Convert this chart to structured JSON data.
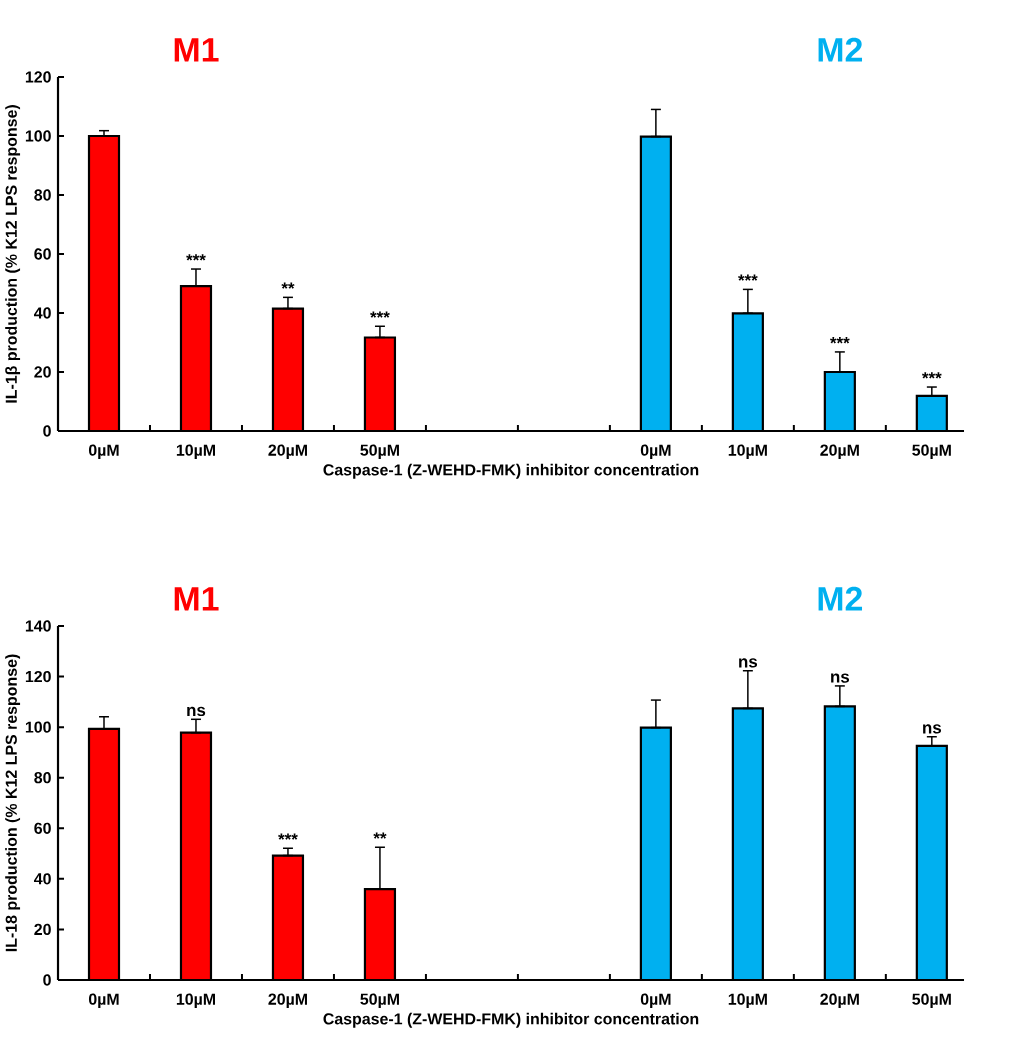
{
  "chart_data": [
    {
      "type": "bar",
      "xlabel": "Caspase-1 (Z-WEHD-FMK) inhibitor concentration",
      "ylabel": "IL-1β production (% K12 LPS response)",
      "annotations": [
        "M1",
        "M2"
      ],
      "categories": [
        "0µM",
        "10µM",
        "20µM",
        "50µM",
        null,
        null,
        "0µM",
        "10µM",
        "20µM",
        "50µM"
      ],
      "values": [
        100,
        49.1,
        41.5,
        31.7,
        null,
        null,
        99.8,
        39.9,
        20.0,
        11.9
      ],
      "errors": [
        [
          100,
          101.8
        ],
        [
          49.1,
          54.9
        ],
        [
          41.5,
          45.3
        ],
        [
          31.7,
          35.5
        ],
        null,
        null,
        [
          99.8,
          109
        ],
        [
          39.9,
          48
        ],
        [
          20.0,
          26.8
        ],
        [
          11.9,
          14.9
        ]
      ],
      "value_labels": [
        null,
        "***",
        "**",
        "***",
        null,
        null,
        null,
        "***",
        "***",
        "***"
      ],
      "colors": [
        "#ff0000",
        "#ff0000",
        "#ff0000",
        "#ff0000",
        "#ff0000",
        "#ff0000",
        "#00b0f0",
        "#00b0f0",
        "#00b0f0",
        "#00b0f0"
      ],
      "ylim": [
        0,
        120
      ],
      "yticks": [
        0,
        20,
        40,
        60,
        80,
        100,
        120
      ],
      "grid": false
    },
    {
      "type": "bar",
      "xlabel": "Caspase-1 (Z-WEHD-FMK) inhibitor concentration",
      "ylabel": "IL-18 production (% K12 LPS response)",
      "annotations": [
        "M1",
        "M2"
      ],
      "categories": [
        "0µM",
        "10µM",
        "20µM",
        "50µM",
        null,
        null,
        "0µM",
        "10µM",
        "20µM",
        "50µM"
      ],
      "values": [
        99.3,
        97.8,
        49.2,
        35.9,
        null,
        null,
        99.8,
        107.4,
        108.2,
        92.6
      ],
      "errors": [
        [
          99.3,
          104.1
        ],
        [
          97.8,
          103.1
        ],
        [
          49.2,
          52.1
        ],
        [
          35.9,
          52.5
        ],
        null,
        null,
        [
          99.8,
          110.7
        ],
        [
          107.4,
          122.3
        ],
        [
          108.2,
          116.3
        ],
        [
          92.6,
          96.2
        ]
      ],
      "value_labels": [
        null,
        "ns",
        "***",
        "**",
        null,
        null,
        null,
        "ns",
        "ns",
        "ns"
      ],
      "colors": [
        "#ff0000",
        "#ff0000",
        "#ff0000",
        "#ff0000",
        "#ff0000",
        "#ff0000",
        "#00b0f0",
        "#00b0f0",
        "#00b0f0",
        "#00b0f0"
      ],
      "ylim": [
        0,
        140
      ],
      "yticks": [
        0,
        20,
        40,
        60,
        80,
        100,
        120,
        140
      ],
      "grid": false
    }
  ]
}
